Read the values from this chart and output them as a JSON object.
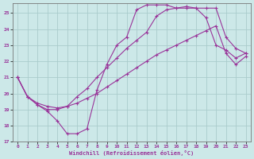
{
  "xlabel": "Windchill (Refroidissement éolien,°C)",
  "bg_color": "#cce8e8",
  "grid_color": "#aacccc",
  "line_color": "#993399",
  "xlim": [
    -0.5,
    23.5
  ],
  "ylim": [
    17,
    25.6
  ],
  "yticks": [
    17,
    18,
    19,
    20,
    21,
    22,
    23,
    24,
    25
  ],
  "xticks": [
    0,
    1,
    2,
    3,
    4,
    5,
    6,
    7,
    8,
    9,
    10,
    11,
    12,
    13,
    14,
    15,
    16,
    17,
    18,
    19,
    20,
    21,
    22,
    23
  ],
  "line1_x": [
    0,
    1,
    2,
    3,
    4,
    5,
    6,
    7,
    8,
    9,
    10,
    11,
    12,
    13,
    14,
    15,
    16,
    17,
    18,
    19,
    20,
    21,
    22,
    23
  ],
  "line1_y": [
    21.0,
    19.8,
    19.3,
    18.9,
    18.3,
    17.5,
    17.5,
    17.8,
    20.2,
    21.8,
    23.0,
    23.5,
    25.2,
    25.5,
    25.5,
    25.5,
    25.3,
    25.3,
    25.3,
    25.3,
    25.3,
    23.5,
    22.8,
    22.5
  ],
  "line2_x": [
    0,
    1,
    2,
    3,
    4,
    5,
    6,
    7,
    8,
    9,
    10,
    11,
    12,
    13,
    14,
    15,
    16,
    17,
    18,
    19,
    20,
    21,
    22,
    23
  ],
  "line2_y": [
    21.0,
    19.8,
    19.3,
    19.0,
    19.0,
    19.2,
    19.8,
    20.3,
    21.0,
    21.6,
    22.2,
    22.8,
    23.3,
    23.8,
    24.8,
    25.2,
    25.3,
    25.4,
    25.3,
    24.7,
    23.0,
    22.7,
    22.2,
    22.5
  ],
  "line3_x": [
    0,
    1,
    2,
    3,
    4,
    5,
    6,
    7,
    8,
    9,
    10,
    11,
    12,
    13,
    14,
    15,
    16,
    17,
    18,
    19,
    20,
    21,
    22,
    23
  ],
  "line3_y": [
    21.0,
    19.8,
    19.4,
    19.2,
    19.1,
    19.2,
    19.4,
    19.7,
    20.0,
    20.4,
    20.8,
    21.2,
    21.6,
    22.0,
    22.4,
    22.7,
    23.0,
    23.3,
    23.6,
    23.9,
    24.2,
    22.5,
    21.8,
    22.3
  ]
}
